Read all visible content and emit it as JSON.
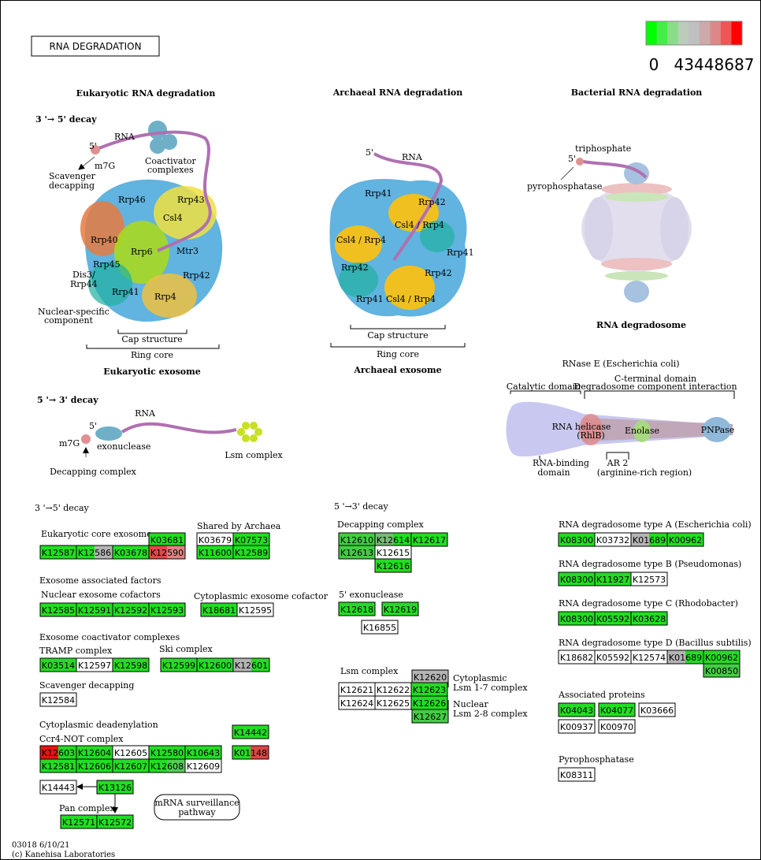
{
  "title": "RNA DEGRADATION",
  "legend": {
    "colors": [
      "#00ff00",
      "#44ee44",
      "#88dd88",
      "#bbccbb",
      "#c0c0c0",
      "#ccaaaa",
      "#dd8888",
      "#ee5555",
      "#ff0000"
    ],
    "ticks": [
      0,
      4344,
      8687
    ]
  },
  "headings": [
    "Eukaryotic RNA degradation",
    "Archaeal RNA degradation",
    "Bacterial RNA degradation",
    "3 '→ 5' decay",
    "Eukaryotic exosome",
    "Archaeal exosome",
    "RNA degradosome",
    "5 '→ 3' decay"
  ],
  "labels": [
    "RNA",
    "5'",
    "m7G",
    "Scavenger",
    "decapping",
    "Coactivator",
    "complexes",
    "Rrp46",
    "Rrp43",
    "Csl4",
    "Rrp40",
    "Rrp6",
    "Mtr3",
    "Rrp45",
    "Dis3/",
    "Rrp44",
    "Rrp42",
    "Rrp41",
    "Rrp4",
    "Nuclear-specific",
    "component",
    "Cap structure",
    "Ring core",
    "5'",
    "RNA",
    "Rrp41",
    "Rrp42",
    "Csl4 / Rrp4",
    "Csl4 / Rrp4",
    "Rrp41",
    "Rrp42",
    "Rrp42",
    "Rrp41",
    "Csl4 / Rrp4",
    "Cap structure",
    "Ring core",
    "triphosphate",
    "5'",
    "pyrophosphatase",
    "RNase E (Escherichia coli)",
    "C-terminal domain",
    "Catalytic domain",
    "Degradosome component interaction",
    "RNA helicase",
    "(RhlB)",
    "Enolase",
    "PNPase",
    "RNA-binding",
    "domain",
    "AR 2",
    "(arginine-rich region)",
    "RNA",
    "5'",
    "m7G",
    "exonuclease",
    "Lsm complex",
    "Decapping complex",
    "3 '→5' decay",
    "5 '→3' decay",
    "Eukaryotic core exosome",
    "Shared by Archaea",
    "Exosome associated factors",
    "Nuclear exosome cofactors",
    "Cytoplasmic exosome cofactor",
    "Exosome coactivator complexes",
    "TRAMP complex",
    "Ski complex",
    "Scavenger decapping",
    "Cytoplasmic deadenylation",
    "Ccr4-NOT complex",
    "Pan complex",
    "mRNA surveillance",
    "pathway",
    "Decapping complex",
    "5' exonuclease",
    "Lsm complex",
    "Cytoplasmic",
    "Lsm 1-7 complex",
    "Nuclear",
    "Lsm 2-8 complex",
    "RNA degradosome type A (Escherichia coli)",
    "RNA degradosome type B (Pseudomonas)",
    "RNA degradosome type C (Rhodobacter)",
    "RNA degradosome type D (Bacillus subtilis)",
    "Associated proteins",
    "Pyrophosphatase"
  ],
  "groups": [
    {
      "rows": [
        [
          {
            "label": "K03681",
            "colors": [
              "#22dd22"
            ]
          }
        ],
        [
          {
            "label": "K12587",
            "colors": [
              "#22dd22"
            ]
          },
          {
            "label": "K12586",
            "colors": [
              "#22dd22",
              "#b4b4b4"
            ]
          },
          {
            "label": "K03678",
            "colors": [
              "#22dd22"
            ]
          },
          {
            "label": "K12590",
            "colors": [
              "#e04848",
              "#e08080"
            ]
          }
        ]
      ]
    },
    {
      "rows": [
        [
          {
            "label": "K03679",
            "colors": [
              "#ffffff"
            ]
          },
          {
            "label": "K07573",
            "colors": [
              "#22dd22"
            ]
          }
        ],
        [
          {
            "label": "K11600",
            "colors": [
              "#22dd22"
            ]
          },
          {
            "label": "K12589",
            "colors": [
              "#22dd22"
            ]
          }
        ]
      ]
    },
    {
      "rows": [
        [
          {
            "label": "K12585",
            "colors": [
              "#22dd22"
            ]
          },
          {
            "label": "K12591",
            "colors": [
              "#22dd22"
            ]
          },
          {
            "label": "K12592",
            "colors": [
              "#22dd22"
            ]
          },
          {
            "label": "K12593",
            "colors": [
              "#22dd22"
            ]
          }
        ]
      ]
    },
    {
      "rows": [
        [
          {
            "label": "K18681",
            "colors": [
              "#22dd22"
            ]
          },
          {
            "label": "K12595",
            "colors": [
              "#ffffff"
            ]
          }
        ]
      ]
    },
    {
      "rows": [
        [
          {
            "label": "K03514",
            "colors": [
              "#22dd22"
            ]
          },
          {
            "label": "K12597",
            "colors": [
              "#ffffff"
            ]
          },
          {
            "label": "K12598",
            "colors": [
              "#22dd22"
            ]
          }
        ]
      ]
    },
    {
      "rows": [
        [
          {
            "label": "K12599",
            "colors": [
              "#22dd22"
            ]
          },
          {
            "label": "K12600",
            "colors": [
              "#22dd22"
            ]
          },
          {
            "label": "K12601",
            "colors": [
              "#b4b4b4",
              "#22dd22"
            ]
          }
        ]
      ]
    },
    {
      "rows": [
        [
          {
            "label": "K12584",
            "colors": [
              "#ffffff"
            ]
          }
        ]
      ]
    },
    {
      "rows": [
        [
          {
            "label": "K12603",
            "colors": [
              "#ee1111",
              "#22dd22"
            ]
          },
          {
            "label": "K12604",
            "colors": [
              "#22dd22"
            ]
          },
          {
            "label": "K12605",
            "colors": [
              "#ffffff"
            ]
          },
          {
            "label": "K12580",
            "colors": [
              "#22dd22"
            ]
          },
          {
            "label": "K10643",
            "colors": [
              "#22dd22"
            ]
          }
        ],
        [
          {
            "label": "K12581",
            "colors": [
              "#22dd22"
            ]
          },
          {
            "label": "K12606",
            "colors": [
              "#22dd22"
            ]
          },
          {
            "label": "K12607",
            "colors": [
              "#22dd22"
            ]
          },
          {
            "label": "K12608",
            "colors": [
              "#22dd22",
              "#55cc55"
            ]
          },
          {
            "label": "K12609",
            "colors": [
              "#ffffff"
            ]
          }
        ]
      ]
    },
    {
      "rows": [
        [
          {
            "label": "K14442",
            "colors": [
              "#22dd22"
            ]
          }
        ],
        [
          {
            "label": "K01148",
            "colors": [
              "#22dd22",
              "#dd4444"
            ]
          }
        ]
      ]
    },
    {
      "rows": [
        [
          {
            "label": "K14443",
            "colors": [
              "#ffffff"
            ]
          }
        ]
      ]
    },
    {
      "rows": [
        [
          {
            "label": "K13126",
            "colors": [
              "#22dd22"
            ]
          }
        ]
      ]
    },
    {
      "rows": [
        [
          {
            "label": "K12571",
            "colors": [
              "#22dd22"
            ]
          },
          {
            "label": "K12572",
            "colors": [
              "#22dd22"
            ]
          }
        ]
      ]
    },
    {
      "rows": [
        [
          {
            "label": "K12610",
            "colors": [
              "#44cc44"
            ]
          },
          {
            "label": "K12614",
            "colors": [
              "#77bb77",
              "#22dd22"
            ]
          },
          {
            "label": "K12617",
            "colors": [
              "#22dd22"
            ]
          }
        ],
        [
          {
            "label": "K12613",
            "colors": [
              "#44cc44"
            ]
          },
          {
            "label": "K12615",
            "colors": [
              "#ffffff"
            ]
          }
        ],
        [
          {
            "label": "K12616",
            "colors": [
              "#22dd22"
            ]
          }
        ]
      ]
    },
    {
      "rows": [
        [
          {
            "label": "K12618",
            "colors": [
              "#22dd22"
            ]
          }
        ],
        [
          {
            "label": "K12619",
            "colors": [
              "#22dd22"
            ]
          }
        ],
        [
          {
            "label": "K16855",
            "colors": [
              "#ffffff"
            ]
          }
        ]
      ]
    },
    {
      "rows": [
        [
          {
            "label": "K12620",
            "colors": [
              "#b4b4b4"
            ]
          }
        ],
        [
          {
            "label": "K12621",
            "colors": [
              "#ffffff"
            ]
          },
          {
            "label": "K12622",
            "colors": [
              "#ffffff"
            ]
          },
          {
            "label": "K12623",
            "colors": [
              "#22dd22"
            ]
          }
        ],
        [
          {
            "label": "K12624",
            "colors": [
              "#ffffff"
            ]
          },
          {
            "label": "K12625",
            "colors": [
              "#ffffff"
            ]
          },
          {
            "label": "K12626",
            "colors": [
              "#22dd22"
            ]
          }
        ],
        [
          {
            "label": "K12627",
            "colors": [
              "#44cc44"
            ]
          }
        ]
      ]
    },
    {
      "rows": [
        [
          {
            "label": "K08300",
            "colors": [
              "#22dd22"
            ]
          },
          {
            "label": "K03732",
            "colors": [
              "#ffffff"
            ]
          },
          {
            "label": "K01689",
            "colors": [
              "#b4b4b4",
              "#22dd22"
            ]
          },
          {
            "label": "K00962",
            "colors": [
              "#22dd22"
            ]
          }
        ]
      ]
    },
    {
      "rows": [
        [
          {
            "label": "K08300",
            "colors": [
              "#22dd22"
            ]
          },
          {
            "label": "K11927",
            "colors": [
              "#22dd22"
            ]
          },
          {
            "label": "K12573",
            "colors": [
              "#ffffff"
            ]
          }
        ]
      ]
    },
    {
      "rows": [
        [
          {
            "label": "K08300",
            "colors": [
              "#22dd22"
            ]
          },
          {
            "label": "K05592",
            "colors": [
              "#22dd22"
            ]
          },
          {
            "label": "K03628",
            "colors": [
              "#22dd22"
            ]
          }
        ]
      ]
    },
    {
      "rows": [
        [
          {
            "label": "K18682",
            "colors": [
              "#ffffff"
            ]
          },
          {
            "label": "K05592",
            "colors": [
              "#ffffff"
            ]
          },
          {
            "label": "K12574",
            "colors": [
              "#ffffff"
            ]
          },
          {
            "label": "K01689",
            "colors": [
              "#b4b4b4",
              "#22dd22"
            ]
          },
          {
            "label": "K00962",
            "colors": [
              "#22dd22"
            ]
          }
        ],
        [
          {
            "label": "K00850",
            "colors": [
              "#44cc44"
            ]
          }
        ]
      ]
    },
    {
      "rows": [
        [
          {
            "label": "K04043",
            "colors": [
              "#22dd22"
            ]
          },
          {
            "label": "K04077",
            "colors": [
              "#22dd22"
            ]
          },
          {
            "label": "K03666",
            "colors": [
              "#ffffff"
            ]
          }
        ],
        [
          {
            "label": "K00937",
            "colors": [
              "#ffffff"
            ]
          },
          {
            "label": "K00970",
            "colors": [
              "#ffffff"
            ]
          }
        ]
      ]
    },
    {
      "rows": [
        [
          {
            "label": "K08311",
            "colors": [
              "#ffffff"
            ]
          }
        ]
      ]
    }
  ],
  "footer": [
    "03018 6/10/21",
    "(c) Kanehisa Laboratories"
  ]
}
